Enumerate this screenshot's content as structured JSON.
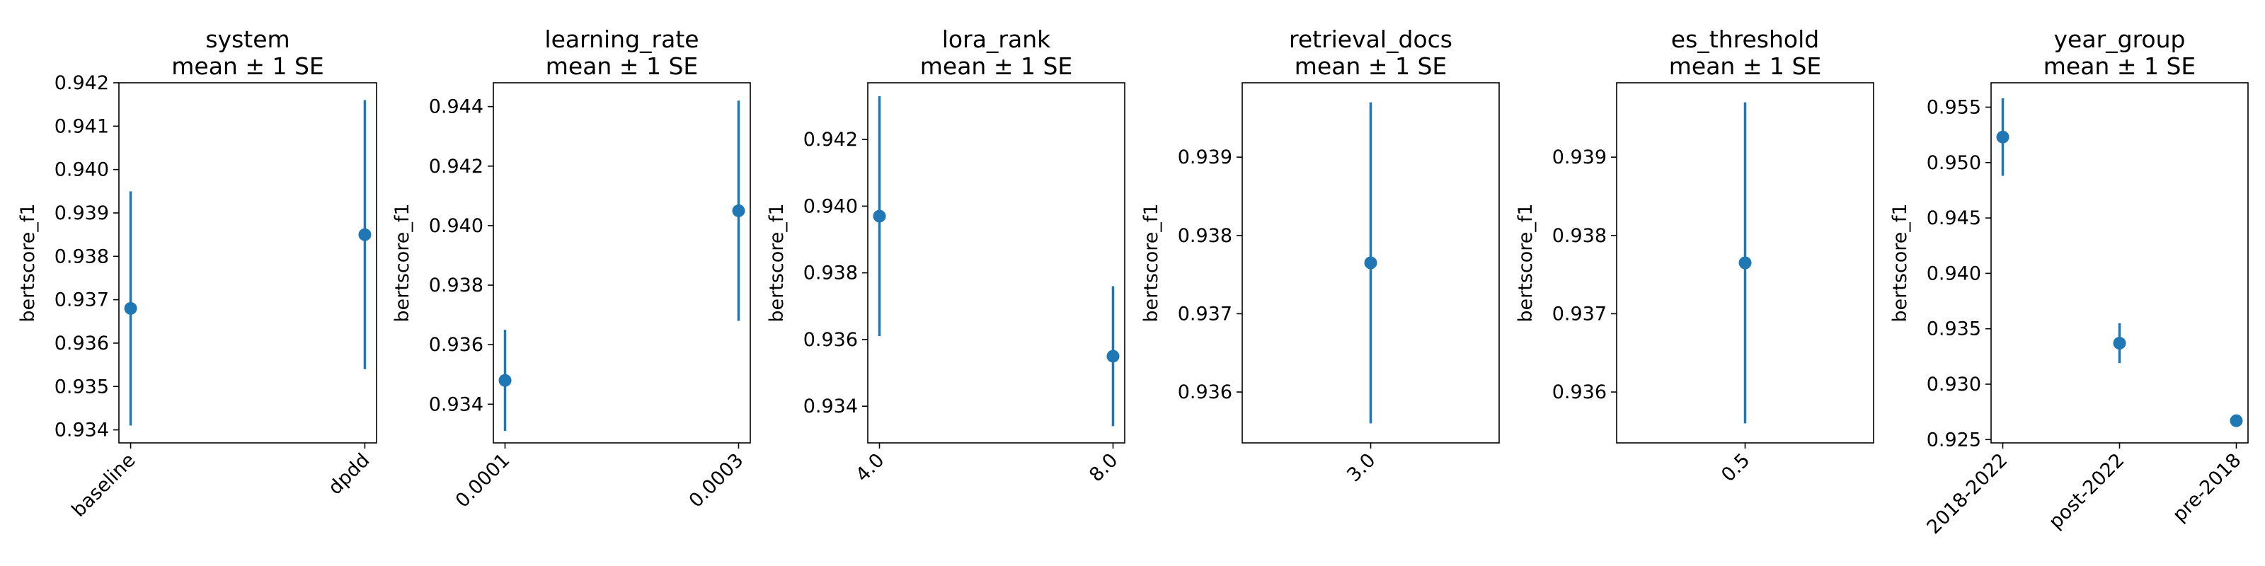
{
  "figure": {
    "ylabel": "bertscore_f1",
    "title_suffix": "mean ± 1 SE",
    "marker_color": "#1f77b4"
  },
  "chart_data": [
    {
      "type": "errorbar",
      "title": "system",
      "categories": [
        "baseline",
        "dpdd"
      ],
      "means": [
        0.9368,
        0.9385
      ],
      "se": [
        0.0027,
        0.0031
      ],
      "ylim": [
        0.9337,
        0.942
      ],
      "yticks": [
        0.934,
        0.935,
        0.936,
        0.937,
        0.938,
        0.939,
        0.94,
        0.941,
        0.942
      ],
      "ytick_labels": [
        "0.934",
        "0.935",
        "0.936",
        "0.937",
        "0.938",
        "0.939",
        "0.940",
        "0.941",
        "0.942"
      ],
      "ylabel": "bertscore_f1"
    },
    {
      "type": "errorbar",
      "title": "learning_rate",
      "categories": [
        "0.0001",
        "0.0003"
      ],
      "means": [
        0.9348,
        0.9405
      ],
      "se": [
        0.0017,
        0.0037
      ],
      "ylim": [
        0.9327,
        0.9448
      ],
      "yticks": [
        0.934,
        0.936,
        0.938,
        0.94,
        0.942,
        0.944
      ],
      "ytick_labels": [
        "0.934",
        "0.936",
        "0.938",
        "0.940",
        "0.942",
        "0.944"
      ],
      "ylabel": "bertscore_f1"
    },
    {
      "type": "errorbar",
      "title": "lora_rank",
      "categories": [
        "4.0",
        "8.0"
      ],
      "means": [
        0.9397,
        0.9355
      ],
      "se": [
        0.0036,
        0.0021
      ],
      "ylim": [
        0.9329,
        0.9437
      ],
      "yticks": [
        0.934,
        0.936,
        0.938,
        0.94,
        0.942
      ],
      "ytick_labels": [
        "0.934",
        "0.936",
        "0.938",
        "0.940",
        "0.942"
      ],
      "ylabel": "bertscore_f1"
    },
    {
      "type": "errorbar",
      "title": "retrieval_docs",
      "categories": [
        "3.0"
      ],
      "means": [
        0.93765
      ],
      "se": [
        0.00205
      ],
      "ylim": [
        0.93535,
        0.93995
      ],
      "yticks": [
        0.936,
        0.937,
        0.938,
        0.939
      ],
      "ytick_labels": [
        "0.936",
        "0.937",
        "0.938",
        "0.939"
      ],
      "ylabel": "bertscore_f1"
    },
    {
      "type": "errorbar",
      "title": "es_threshold",
      "categories": [
        "0.5"
      ],
      "means": [
        0.93765
      ],
      "se": [
        0.00205
      ],
      "ylim": [
        0.93535,
        0.93995
      ],
      "yticks": [
        0.936,
        0.937,
        0.938,
        0.939
      ],
      "ytick_labels": [
        "0.936",
        "0.937",
        "0.938",
        "0.939"
      ],
      "ylabel": "bertscore_f1"
    },
    {
      "type": "errorbar",
      "title": "year_group",
      "categories": [
        "2018-2022",
        "post-2022",
        "pre-2018"
      ],
      "means": [
        0.9523,
        0.9337,
        0.9267
      ],
      "se": [
        0.0035,
        0.0018,
        0.0002
      ],
      "ylim": [
        0.9247,
        0.9572
      ],
      "yticks": [
        0.925,
        0.93,
        0.935,
        0.94,
        0.945,
        0.95,
        0.955
      ],
      "ytick_labels": [
        "0.925",
        "0.930",
        "0.935",
        "0.940",
        "0.945",
        "0.950",
        "0.955"
      ],
      "ylabel": "bertscore_f1"
    }
  ]
}
